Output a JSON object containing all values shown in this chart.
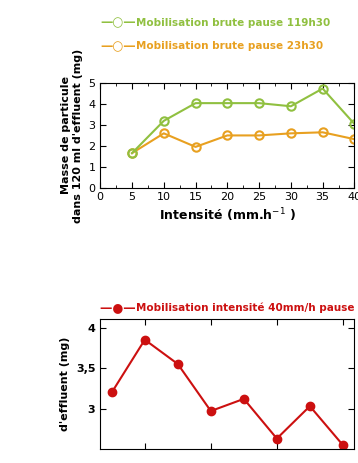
{
  "top_chart": {
    "series1_label": "Mobilisation brute pause 23h30",
    "series1_color": "#E8A020",
    "series1_x": [
      5,
      10,
      15,
      20,
      25,
      30,
      35,
      40
    ],
    "series1_y": [
      1.65,
      2.6,
      1.95,
      2.5,
      2.5,
      2.6,
      2.65,
      2.32
    ],
    "series2_label": "Mobilisation brute pause 119h30",
    "series2_color": "#90C040",
    "series2_x": [
      5,
      10,
      15,
      20,
      25,
      30,
      35,
      40
    ],
    "series2_y": [
      1.65,
      3.2,
      4.05,
      4.05,
      4.05,
      3.9,
      4.75,
      3.05
    ],
    "xlim": [
      0,
      40
    ],
    "ylim": [
      0,
      5
    ],
    "yticks": [
      0,
      1,
      2,
      3,
      4,
      5
    ],
    "xticks": [
      0,
      5,
      10,
      15,
      20,
      25,
      30,
      35,
      40
    ]
  },
  "bottom_chart": {
    "series1_label": "Mobilisation intensité 40mm/h pause",
    "series1_color": "#CC1010",
    "series1_x": [
      1,
      2,
      3,
      4,
      5,
      6,
      7,
      8
    ],
    "series1_y": [
      3.2,
      3.85,
      3.55,
      2.97,
      3.12,
      2.63,
      3.03,
      2.55
    ],
    "ylim": [
      2.5,
      4.1
    ],
    "yticks": [
      3,
      3.5,
      4
    ],
    "ytick_labels": [
      "3",
      "3,5",
      "4"
    ]
  },
  "bg_color": "#ffffff",
  "marker_size": 6
}
